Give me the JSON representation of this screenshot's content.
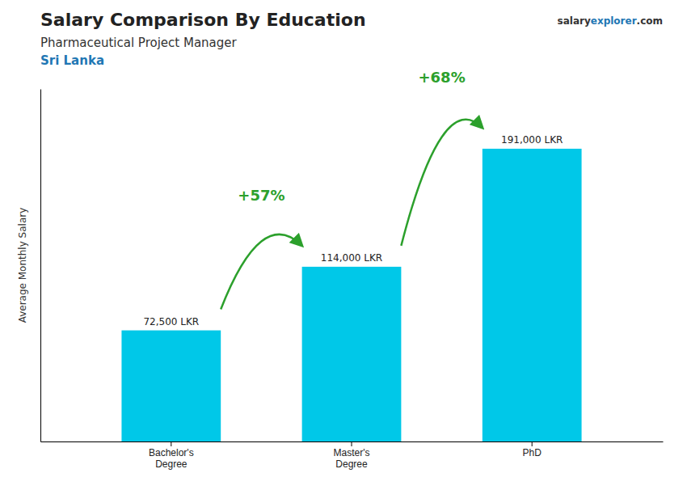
{
  "chart_data": {
    "type": "bar",
    "title": "Salary Comparison By Education",
    "subtitle": "Pharmaceutical Project Manager",
    "country": "Sri Lanka",
    "source": [
      "salary",
      "explorer",
      ".com"
    ],
    "y_label": "Average Monthly Salary",
    "categories": [
      "Bachelor's\nDegree",
      "Master's\nDegree",
      "PhD"
    ],
    "values": [
      72500,
      114000,
      191000
    ],
    "value_labels": [
      "72,500 LKR",
      "114,000 LKR",
      "191,000 LKR"
    ],
    "data_labels": true,
    "annotations": [
      "+57%",
      "+68%"
    ],
    "color": "#00c8e8",
    "ylim": [
      0,
      230000
    ],
    "tick_labels": "x",
    "grid": false
  }
}
